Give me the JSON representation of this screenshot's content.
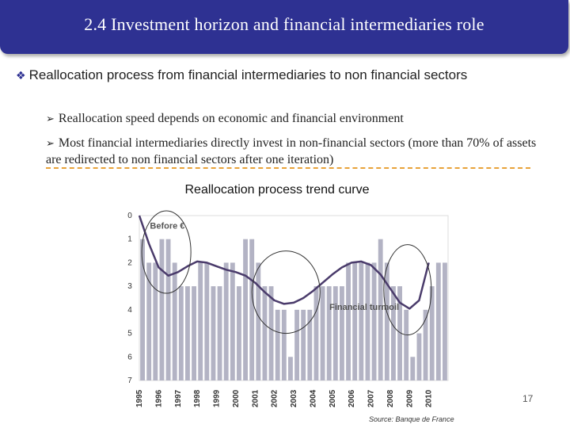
{
  "slide": {
    "title": "2.4 Investment horizon and financial intermediaries role",
    "bullet_main": "Reallocation process from financial intermediaries to non financial sectors",
    "sub_bullets": [
      "Reallocation speed depends on economic and financial environment",
      "Most financial intermediaries directly invest in non-financial sectors (more than 70% of assets are redirected to non financial sectors after one iteration)"
    ],
    "chart_heading": "Reallocation process trend curve",
    "page_number": "17",
    "source": "Source: Banque de France"
  },
  "colors": {
    "title_bar": "#2e3192",
    "bar_fill": "#b3b3c4",
    "curve": "#4a3b6b",
    "separator": "#e8a23a"
  },
  "chart_data": {
    "type": "bar",
    "title": "Reallocation process trend curve",
    "annotations": [
      "Before €",
      "Financial turmoil"
    ],
    "ylim": [
      0,
      7
    ],
    "y_inverted": true,
    "yticks": [
      0,
      1,
      2,
      3,
      4,
      5,
      6,
      7
    ],
    "xticks": [
      "1995",
      "1996",
      "1997",
      "1998",
      "1999",
      "2000",
      "2001",
      "2002",
      "2003",
      "2004",
      "2005",
      "2006",
      "2007",
      "2008",
      "2009",
      "2010"
    ],
    "x_start_year": 1995,
    "bars_per_year": 4,
    "values": [
      1,
      2,
      2,
      1,
      1,
      2,
      3,
      3,
      3,
      2,
      2,
      3,
      3,
      2,
      2,
      3,
      1,
      1,
      2,
      3,
      3,
      4,
      4,
      6,
      4,
      4,
      4,
      3,
      3,
      3,
      3,
      3,
      2,
      2,
      2,
      2,
      2,
      1,
      2,
      3,
      3,
      4,
      6,
      5,
      4,
      3,
      2,
      2
    ],
    "trend": [
      [
        1995.0,
        0.0
      ],
      [
        1995.5,
        1.2
      ],
      [
        1996.0,
        2.2
      ],
      [
        1996.5,
        2.55
      ],
      [
        1997.0,
        2.4
      ],
      [
        1997.5,
        2.15
      ],
      [
        1998.0,
        1.95
      ],
      [
        1998.5,
        2.0
      ],
      [
        1999.0,
        2.15
      ],
      [
        1999.5,
        2.3
      ],
      [
        2000.0,
        2.4
      ],
      [
        2000.5,
        2.55
      ],
      [
        2001.0,
        2.85
      ],
      [
        2001.5,
        3.25
      ],
      [
        2002.0,
        3.6
      ],
      [
        2002.5,
        3.75
      ],
      [
        2003.0,
        3.7
      ],
      [
        2003.5,
        3.5
      ],
      [
        2004.0,
        3.2
      ],
      [
        2004.5,
        2.85
      ],
      [
        2005.0,
        2.5
      ],
      [
        2005.5,
        2.2
      ],
      [
        2006.0,
        2.0
      ],
      [
        2006.5,
        1.95
      ],
      [
        2007.0,
        2.1
      ],
      [
        2007.5,
        2.5
      ],
      [
        2008.0,
        3.1
      ],
      [
        2008.5,
        3.7
      ],
      [
        2009.0,
        3.95
      ],
      [
        2009.5,
        3.6
      ],
      [
        2010.0,
        2.0
      ]
    ]
  }
}
